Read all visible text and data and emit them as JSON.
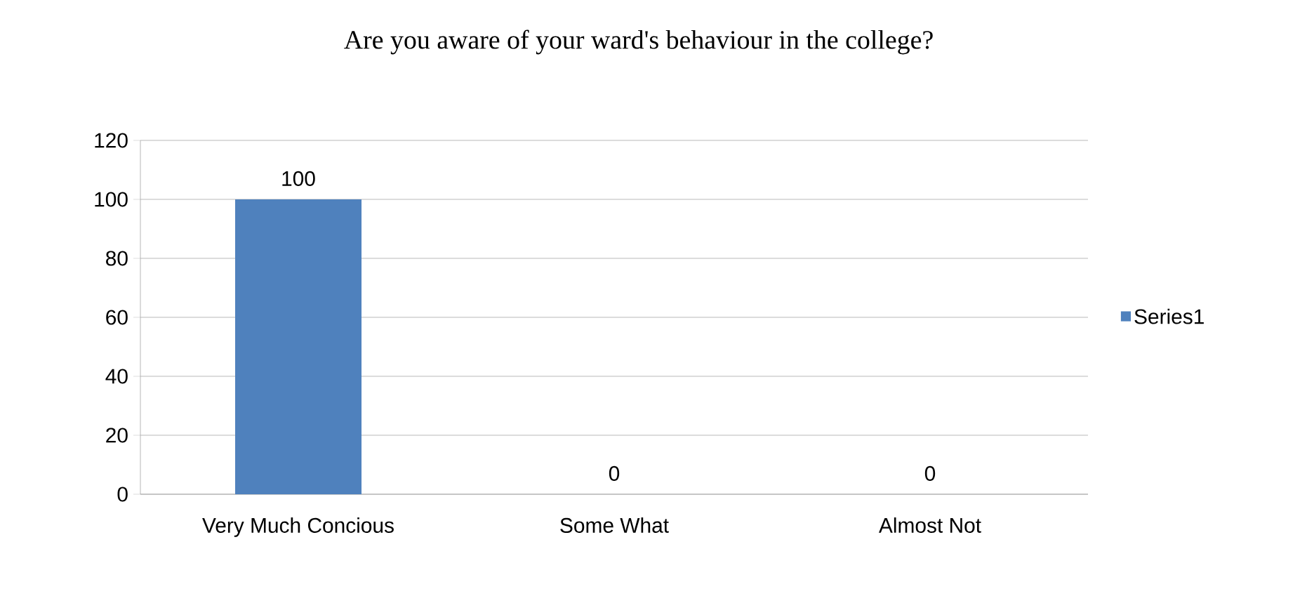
{
  "chart_data": {
    "type": "bar",
    "title": "Are you aware of your ward's behaviour in the college?",
    "categories": [
      "Very Much Concious",
      "Some What",
      "Almost Not"
    ],
    "series": [
      {
        "name": "Series1",
        "color": "#4f81bd",
        "values": [
          100,
          0,
          0
        ]
      }
    ],
    "ylim": [
      0,
      120
    ],
    "yticks": [
      0,
      20,
      40,
      60,
      80,
      100,
      120
    ],
    "grid": "y",
    "legend": "right",
    "data_labels": true
  }
}
